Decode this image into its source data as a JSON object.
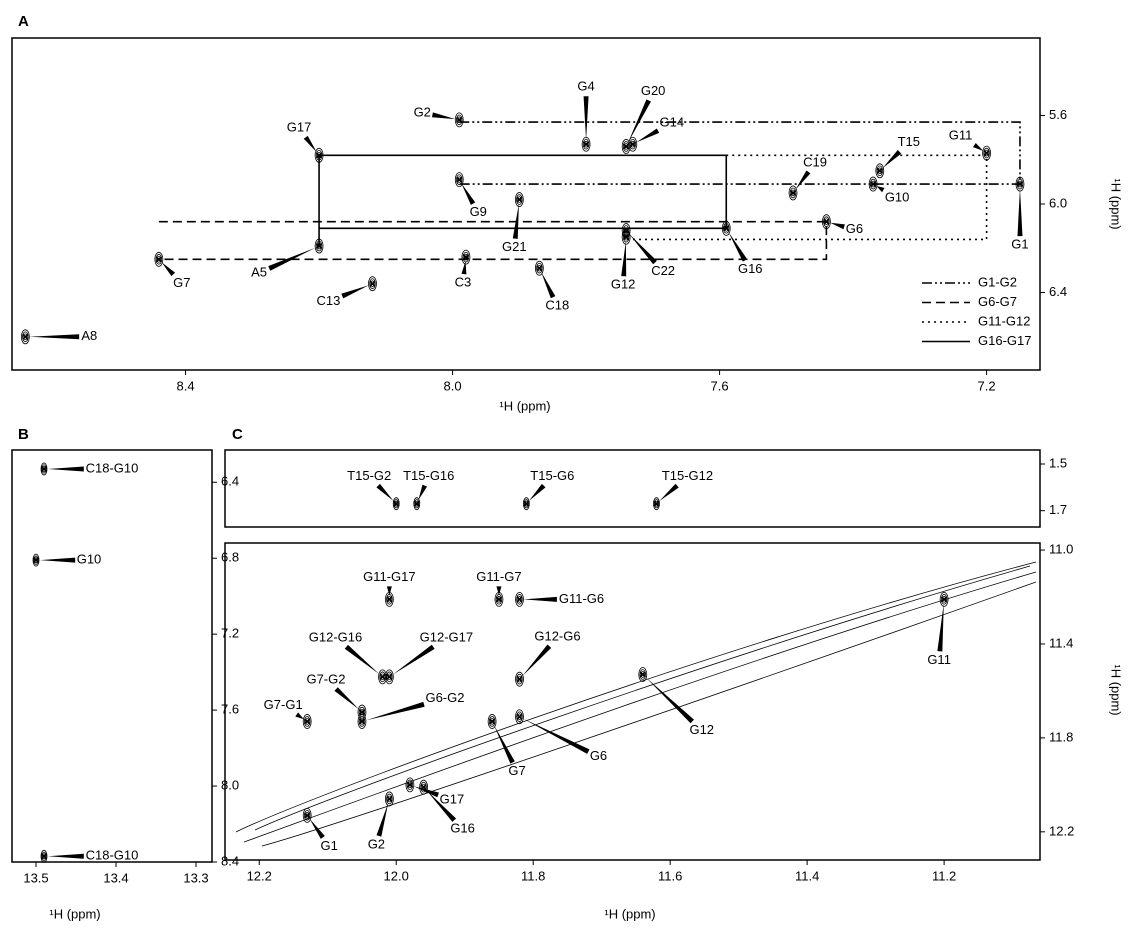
{
  "chart_data": [
    {
      "type": "contour",
      "panel": "A",
      "xlabel": "¹H (ppm)",
      "ylabel": "¹H (ppm)",
      "xlim": [
        8.66,
        7.12
      ],
      "ylim": [
        5.25,
        6.75
      ],
      "xticks": [
        8.4,
        {
          "value": 8,
          "label": "8.0"
        },
        7.6,
        7.2
      ],
      "yticks": [
        5.6,
        {
          "value": 6,
          "label": "6.0"
        },
        6.4
      ],
      "peaks": {
        "labels": [
          "G2",
          "G17",
          "G4",
          "G20",
          "G14",
          "G11",
          "T15",
          "C19",
          "G1",
          "G9",
          "G10",
          "G6",
          "G21",
          "A5",
          "G7",
          "C13",
          "C3",
          "C18",
          "G12",
          "C22",
          "G16",
          "A8"
        ],
        "x": [
          7.99,
          8.2,
          7.8,
          7.74,
          7.73,
          7.2,
          7.36,
          7.49,
          7.15,
          7.99,
          7.37,
          7.44,
          7.9,
          8.2,
          8.44,
          8.12,
          7.98,
          7.87,
          7.74,
          7.74,
          7.59,
          8.64
        ],
        "y": [
          5.62,
          5.78,
          5.73,
          5.74,
          5.73,
          5.77,
          5.85,
          5.95,
          5.91,
          5.89,
          5.91,
          6.08,
          5.98,
          6.19,
          6.25,
          6.36,
          6.24,
          6.29,
          6.15,
          6.12,
          6.11,
          6.6
        ]
      },
      "series": [
        {
          "name": "G1-G2",
          "dash": "dashdotdot",
          "color": "#000000",
          "x": [
            7.99,
            7.15,
            7.15,
            7.99
          ],
          "y": [
            5.63,
            5.63,
            5.91,
            5.91
          ]
        },
        {
          "name": "G6-G7",
          "dash": "dashed",
          "color": "#000000",
          "x": [
            8.44,
            7.44,
            7.44,
            8.44
          ],
          "y": [
            6.08,
            6.08,
            6.25,
            6.25
          ]
        },
        {
          "name": "G11-G12",
          "dash": "dotted",
          "color": "#000000",
          "x": [
            7.59,
            7.2,
            7.2,
            7.74
          ],
          "y": [
            5.78,
            5.78,
            6.16,
            6.16
          ]
        },
        {
          "name": "G16-G17",
          "dash": "solid",
          "color": "#000000",
          "x": [
            8.2,
            8.2,
            7.59,
            7.59,
            8.2
          ],
          "y": [
            6.19,
            5.78,
            5.78,
            6.11,
            6.11
          ]
        }
      ],
      "legend": "lower right"
    },
    {
      "type": "contour",
      "panel": "B",
      "xlabel": "¹H (ppm)",
      "xlim": [
        13.53,
        13.28
      ],
      "ylim": [
        6.23,
        8.4
      ],
      "xticks": [
        13.5,
        13.4,
        13.3
      ],
      "yticks": [
        6.4,
        6.8,
        7.2,
        7.6,
        {
          "value": 8,
          "label": "8.0"
        },
        8.4
      ],
      "peaks": {
        "labels": [
          "C18-G10",
          "G10",
          "C18-G10"
        ],
        "x": [
          13.49,
          13.5,
          13.49
        ],
        "y": [
          6.33,
          6.81,
          8.37
        ]
      }
    },
    {
      "type": "contour",
      "panel": "C",
      "xlim": [
        12.25,
        11.06
      ],
      "ylim": [
        1.44,
        1.77
      ],
      "yticks": [
        1.5,
        1.7
      ],
      "peaks": {
        "labels": [
          "T15-G2",
          "T15-G16",
          "T15-G6",
          "T15-G12"
        ],
        "x": [
          12.0,
          11.97,
          11.81,
          11.62
        ],
        "y": [
          1.67,
          1.67,
          1.67,
          1.67
        ]
      }
    },
    {
      "type": "contour",
      "xlabel": "¹H (ppm)",
      "ylabel": "¹H (ppm)",
      "xlim": [
        12.25,
        11.06
      ],
      "ylim": [
        10.97,
        12.32
      ],
      "xticks": [
        12.2,
        {
          "value": 12,
          "label": "12.0"
        },
        11.8,
        11.6,
        11.4,
        11.2
      ],
      "yticks": [
        {
          "value": 11,
          "label": "11.0"
        },
        11.4,
        11.8,
        12.2
      ],
      "peaks": {
        "labels": [
          "G11-G17",
          "G11-G7",
          "G11-G6",
          "G12-G16",
          "G12-G17",
          "G12-G6",
          "G7-G2",
          "G6-G2",
          "G7-G1",
          "G12",
          "G7",
          "G6",
          "G17",
          "G16",
          "G2",
          "G1",
          "G11"
        ],
        "x": [
          12.01,
          11.85,
          11.82,
          12.02,
          12.01,
          11.82,
          12.05,
          12.05,
          12.13,
          11.64,
          11.86,
          11.82,
          11.98,
          11.96,
          12.01,
          12.13,
          11.2
        ],
        "y": [
          11.21,
          11.21,
          11.21,
          11.54,
          11.54,
          11.55,
          11.69,
          11.73,
          11.73,
          11.53,
          11.73,
          11.71,
          12.0,
          12.01,
          12.06,
          12.13,
          11.21
        ]
      }
    }
  ]
}
